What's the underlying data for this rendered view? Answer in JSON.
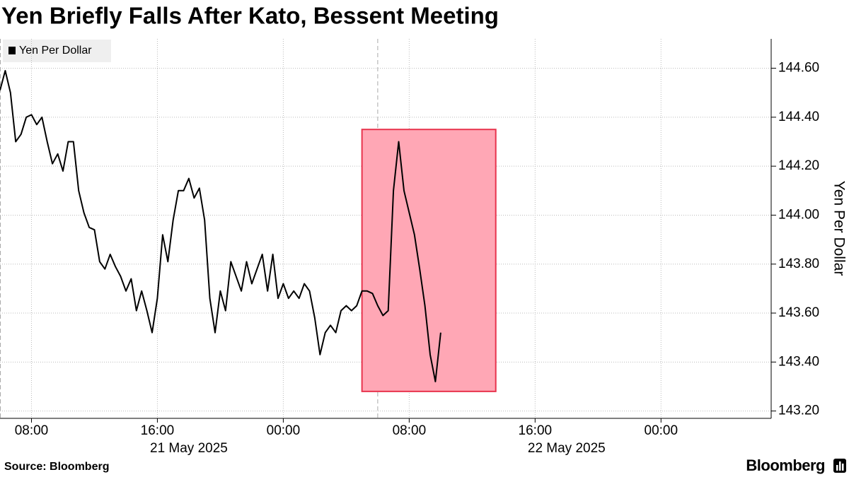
{
  "chart_data": {
    "type": "line",
    "title": "Yen Briefly Falls After Kato, Bessent Meeting",
    "y_label": "Yen Per Dollar",
    "source": "Source: Bloomberg",
    "logo": "Bloomberg",
    "legend": "top-left",
    "grid": true,
    "xlim": [
      "2025-05-21T06:00",
      "2025-05-23T07:00"
    ],
    "ylim": [
      143.17,
      144.72
    ],
    "xticks": [
      {
        "value": "2025-05-21T08:00",
        "label": "08:00"
      },
      {
        "value": "2025-05-21T16:00",
        "label": "16:00"
      },
      {
        "value": "2025-05-22T00:00",
        "label": "00:00"
      },
      {
        "value": "2025-05-22T08:00",
        "label": "08:00"
      },
      {
        "value": "2025-05-22T16:00",
        "label": "16:00"
      },
      {
        "value": "2025-05-23T00:00",
        "label": "00:00"
      }
    ],
    "x_date_labels": [
      {
        "value": "2025-05-21T18:00",
        "label": "21 May 2025"
      },
      {
        "value": "2025-05-22T18:00",
        "label": "22 May 2025"
      }
    ],
    "day_separators": [
      "2025-05-21T06:00",
      "2025-05-22T06:00"
    ],
    "yticks": [
      {
        "value": 143.2,
        "label": "143.20"
      },
      {
        "value": 143.4,
        "label": "143.40"
      },
      {
        "value": 143.6,
        "label": "143.60"
      },
      {
        "value": 143.8,
        "label": "143.80"
      },
      {
        "value": 144.0,
        "label": "144.00"
      },
      {
        "value": 144.2,
        "label": "144.20"
      },
      {
        "value": 144.4,
        "label": "144.40"
      },
      {
        "value": 144.6,
        "label": "144.60"
      }
    ],
    "highlight": {
      "x": [
        "2025-05-22T05:00",
        "2025-05-22T13:30"
      ],
      "y": [
        143.28,
        144.35
      ],
      "color": "#ffa7b5",
      "border": "#e8344e"
    },
    "x": [
      "2025-05-21T06:00",
      "2025-05-21T06:20",
      "2025-05-21T06:40",
      "2025-05-21T07:00",
      "2025-05-21T07:20",
      "2025-05-21T07:40",
      "2025-05-21T08:00",
      "2025-05-21T08:20",
      "2025-05-21T08:40",
      "2025-05-21T09:00",
      "2025-05-21T09:20",
      "2025-05-21T09:40",
      "2025-05-21T10:00",
      "2025-05-21T10:20",
      "2025-05-21T10:40",
      "2025-05-21T11:00",
      "2025-05-21T11:20",
      "2025-05-21T11:40",
      "2025-05-21T12:00",
      "2025-05-21T12:20",
      "2025-05-21T12:40",
      "2025-05-21T13:00",
      "2025-05-21T13:20",
      "2025-05-21T13:40",
      "2025-05-21T14:00",
      "2025-05-21T14:20",
      "2025-05-21T14:40",
      "2025-05-21T15:00",
      "2025-05-21T15:20",
      "2025-05-21T15:40",
      "2025-05-21T16:00",
      "2025-05-21T16:20",
      "2025-05-21T16:40",
      "2025-05-21T17:00",
      "2025-05-21T17:20",
      "2025-05-21T17:40",
      "2025-05-21T18:00",
      "2025-05-21T18:20",
      "2025-05-21T18:40",
      "2025-05-21T19:00",
      "2025-05-21T19:20",
      "2025-05-21T19:40",
      "2025-05-21T20:00",
      "2025-05-21T20:20",
      "2025-05-21T20:40",
      "2025-05-21T21:00",
      "2025-05-21T21:20",
      "2025-05-21T21:40",
      "2025-05-21T22:00",
      "2025-05-21T22:20",
      "2025-05-21T22:40",
      "2025-05-21T23:00",
      "2025-05-21T23:20",
      "2025-05-21T23:40",
      "2025-05-22T00:00",
      "2025-05-22T00:20",
      "2025-05-22T00:40",
      "2025-05-22T01:00",
      "2025-05-22T01:20",
      "2025-05-22T01:40",
      "2025-05-22T02:00",
      "2025-05-22T02:20",
      "2025-05-22T02:40",
      "2025-05-22T03:00",
      "2025-05-22T03:20",
      "2025-05-22T03:40",
      "2025-05-22T04:00",
      "2025-05-22T04:20",
      "2025-05-22T04:40",
      "2025-05-22T05:00",
      "2025-05-22T05:20",
      "2025-05-22T05:40",
      "2025-05-22T06:00",
      "2025-05-22T06:20",
      "2025-05-22T06:40",
      "2025-05-22T07:00",
      "2025-05-22T07:20",
      "2025-05-22T07:40",
      "2025-05-22T08:00",
      "2025-05-22T08:20",
      "2025-05-22T08:40",
      "2025-05-22T09:00",
      "2025-05-22T09:20",
      "2025-05-22T09:40",
      "2025-05-22T10:00"
    ],
    "series": [
      {
        "name": "Yen Per Dollar",
        "color": "#000000",
        "values": [
          144.51,
          144.59,
          144.5,
          144.3,
          144.33,
          144.4,
          144.41,
          144.37,
          144.4,
          144.3,
          144.21,
          144.25,
          144.18,
          144.3,
          144.3,
          144.1,
          144.01,
          143.95,
          143.94,
          143.81,
          143.78,
          143.84,
          143.79,
          143.75,
          143.69,
          143.74,
          143.61,
          143.69,
          143.61,
          143.52,
          143.66,
          143.92,
          143.81,
          143.98,
          144.1,
          144.1,
          144.15,
          144.07,
          144.11,
          143.98,
          143.66,
          143.52,
          143.69,
          143.61,
          143.81,
          143.75,
          143.69,
          143.81,
          143.72,
          143.78,
          143.84,
          143.69,
          143.84,
          143.66,
          143.72,
          143.66,
          143.69,
          143.66,
          143.72,
          143.69,
          143.58,
          143.43,
          143.52,
          143.55,
          143.52,
          143.61,
          143.63,
          143.61,
          143.63,
          143.69,
          143.69,
          143.68,
          143.63,
          143.59,
          143.61,
          144.1,
          144.3,
          144.1,
          144.01,
          143.92,
          143.78,
          143.63,
          143.43,
          143.32,
          143.52
        ]
      }
    ]
  }
}
